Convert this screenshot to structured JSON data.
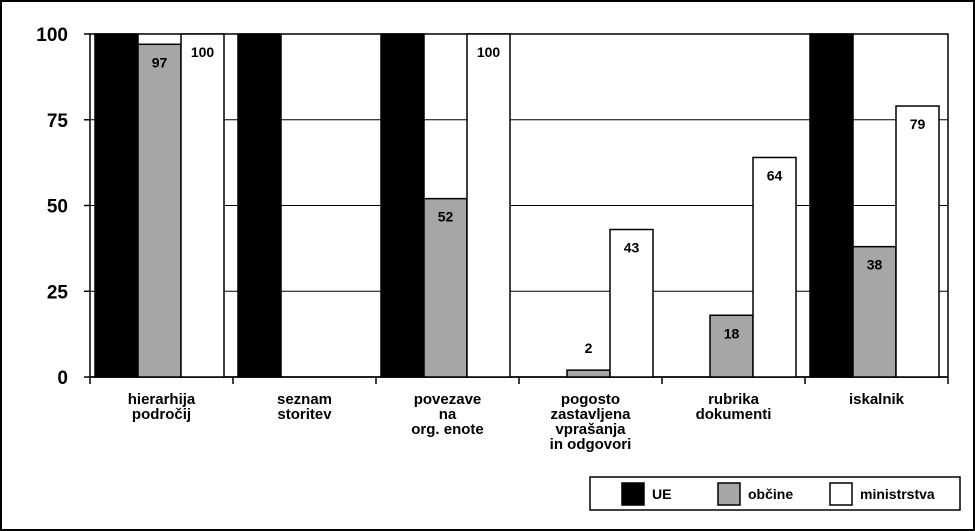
{
  "chart_data": {
    "type": "bar",
    "categories": [
      [
        "hierarhija",
        "področij"
      ],
      [
        "seznam",
        "storitev"
      ],
      [
        "povezave",
        "na",
        "org. enote"
      ],
      [
        "pogosto",
        "zastavljena",
        "vprašanja",
        "in odgovori"
      ],
      [
        "rubrika",
        "dokumenti"
      ],
      [
        "iskalnik"
      ]
    ],
    "series": [
      {
        "name": "UE",
        "color": "#000000",
        "values": [
          100,
          100,
          100,
          0,
          0,
          100
        ],
        "labels": [
          null,
          null,
          null,
          null,
          null,
          null
        ]
      },
      {
        "name": "občine",
        "color": "#a6a6a6",
        "values": [
          97,
          0,
          52,
          2,
          18,
          38
        ],
        "labels": [
          "97",
          null,
          "52",
          "2",
          "18",
          "38"
        ]
      },
      {
        "name": "ministrstva",
        "color": "#ffffff",
        "values": [
          100,
          0,
          100,
          43,
          64,
          79
        ],
        "labels": [
          "100",
          null,
          "100",
          "43",
          "64",
          "79"
        ]
      }
    ],
    "ylim": [
      0,
      100
    ],
    "yticks": [
      "0",
      "25",
      "50",
      "75",
      "100"
    ],
    "grid": true,
    "legend": "bottom-right",
    "title": "",
    "xlabel": "",
    "ylabel": ""
  }
}
